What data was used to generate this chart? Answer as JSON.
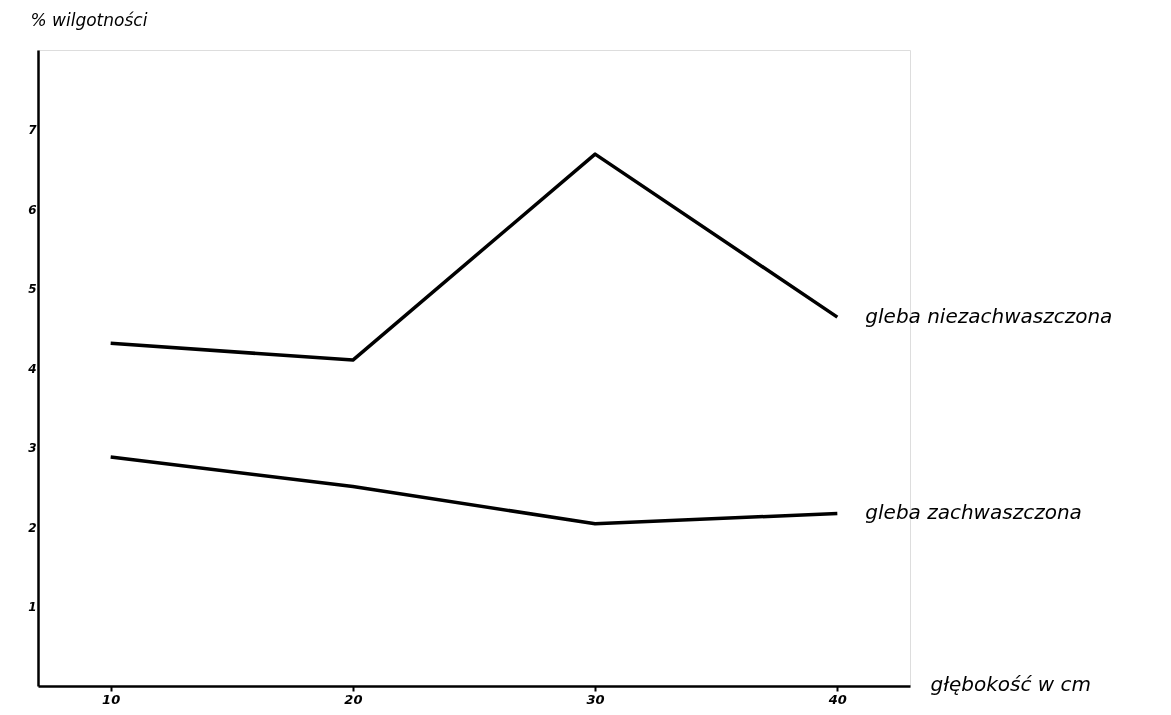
{
  "chart_data": {
    "type": "line",
    "xlabel": "głębokość w cm",
    "ylabel": "% wilgotności",
    "x": [
      10,
      20,
      30,
      40
    ],
    "series": [
      {
        "name": "gleba niezachwaszczona",
        "color": "#000000",
        "values": [
          4.31,
          4.1,
          6.69,
          4.64
        ]
      },
      {
        "name": "gleba zachwaszczona",
        "color": "#000000",
        "values": [
          2.88,
          2.51,
          2.04,
          2.17
        ]
      }
    ],
    "xlim": [
      7,
      43
    ],
    "ylim": [
      0,
      8
    ],
    "xticks": [
      10,
      20,
      30,
      40
    ],
    "yticks": [
      1,
      2,
      3,
      4,
      5,
      6,
      7
    ],
    "grid": false,
    "legend": false,
    "marker": "none",
    "line_style": "solid"
  }
}
